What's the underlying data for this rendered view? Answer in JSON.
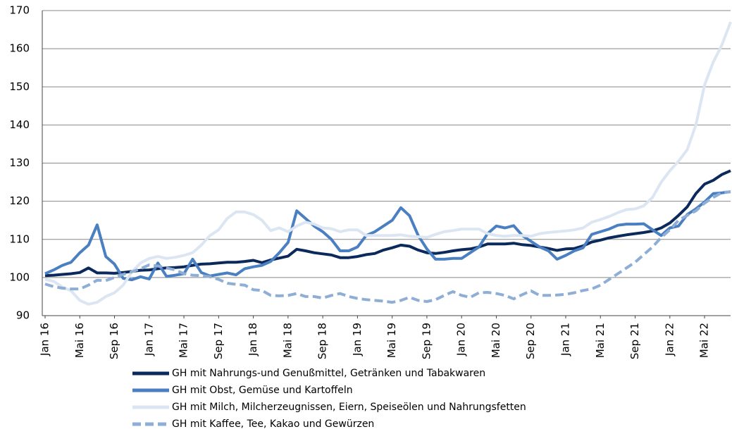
{
  "chart_data": {
    "type": "line",
    "categories": [
      "Jan 16",
      null,
      null,
      null,
      "Mai 16",
      null,
      null,
      null,
      "Sep 16",
      null,
      null,
      null,
      "Jan 17",
      null,
      null,
      null,
      "Mai 17",
      null,
      null,
      null,
      "Sep 17",
      null,
      null,
      null,
      "Jan 18",
      null,
      null,
      null,
      "Mai 18",
      null,
      null,
      null,
      "Sep 18",
      null,
      null,
      null,
      "Jan 19",
      null,
      null,
      null,
      "Mai 19",
      null,
      null,
      null,
      "Sep 19",
      null,
      null,
      null,
      "Jan 20",
      null,
      null,
      null,
      "Mai 20",
      null,
      null,
      null,
      "Sep 20",
      null,
      null,
      null,
      "Jan 21",
      null,
      null,
      null,
      "Mai 21",
      null,
      null,
      null,
      "Sep 21",
      null,
      null,
      null,
      "Jan 22",
      null,
      null,
      null,
      "Mai 22",
      null,
      null,
      null
    ],
    "series": [
      {
        "name": "GH mit Nahrungs-und Genußmittel, Getränken und Tabakwaren",
        "color": "#0b2a5b",
        "values": [
          100.5,
          100.6,
          100.8,
          101,
          101.3,
          102.5,
          101.2,
          101.2,
          101.1,
          101.3,
          101.6,
          101.9,
          102,
          102.3,
          102.5,
          102.6,
          102.8,
          103.2,
          103.5,
          103.6,
          103.8,
          104,
          104,
          104.2,
          104.5,
          103.9,
          104.6,
          105.1,
          105.6,
          107.4,
          107,
          106.5,
          106.2,
          105.9,
          105.2,
          105.2,
          105.5,
          106,
          106.3,
          107.2,
          107.8,
          108.5,
          108.2,
          107.2,
          106.5,
          106.3,
          106.6,
          107,
          107.3,
          107.5,
          108,
          108.8,
          108.8,
          108.8,
          109,
          108.6,
          108.4,
          108,
          107.6,
          107.1,
          107.5,
          107.6,
          108.3,
          109.3,
          109.8,
          110.4,
          110.8,
          111.2,
          111.5,
          111.8,
          112.2,
          113,
          114.3,
          116.3,
          118.5,
          122,
          124.5,
          125.5,
          127,
          128
        ]
      },
      {
        "name": "GH mit Obst, Gemüse und Kartoffeln",
        "color": "#4a7fc1",
        "values": [
          101,
          102,
          103.2,
          104,
          106.5,
          108.5,
          113.8,
          105.5,
          103.5,
          99.8,
          99.4,
          100.2,
          99.6,
          103.8,
          100.3,
          100.6,
          101,
          104.8,
          101.3,
          100.4,
          100.8,
          101.2,
          100.7,
          102.3,
          102.8,
          103.2,
          104.2,
          106.5,
          109.2,
          117.5,
          115.5,
          113.5,
          112,
          110,
          107,
          107,
          108,
          111,
          112,
          113.5,
          115,
          118.3,
          116.2,
          111,
          107.5,
          104.8,
          104.8,
          105,
          105,
          106.5,
          108,
          111.5,
          113.5,
          113,
          113.6,
          111,
          109.5,
          108,
          107,
          104.8,
          105.8,
          107,
          107.8,
          111.3,
          112,
          112.7,
          113.7,
          114,
          114,
          114.1,
          112.5,
          111,
          113,
          113.5,
          116.5,
          118,
          119.8,
          122,
          122.2,
          122.5
        ]
      },
      {
        "name": "GH mit Milch, Milcherzeugnissen, Eiern, Speiseölen und Nahrungsfetten",
        "color": "#dce6f3",
        "values": [
          99.5,
          99,
          97.5,
          96.5,
          94,
          93,
          93.5,
          95,
          96,
          98,
          101.5,
          103.8,
          105,
          105.5,
          105,
          105.3,
          105.8,
          106.5,
          108.5,
          111,
          112.5,
          115.5,
          117.2,
          117.2,
          116.5,
          115,
          112.3,
          113,
          112,
          113.5,
          114.5,
          114,
          113,
          112.8,
          112,
          112.5,
          112.5,
          111,
          111,
          111,
          111,
          111.2,
          110.8,
          110.7,
          110.5,
          111.3,
          112,
          112.3,
          112.7,
          112.7,
          112.7,
          111.5,
          111,
          110.8,
          111,
          111,
          110.8,
          111.5,
          111.8,
          112,
          112.2,
          112.5,
          113,
          114.5,
          115.2,
          116,
          117,
          117.8,
          118,
          118.8,
          121,
          125,
          128,
          130.5,
          133.5,
          140,
          150.5,
          156.5,
          161,
          167
        ]
      },
      {
        "name": "GH mit Kaffee, Tee, Kakao und Gewürzen",
        "color": "#8eaed6",
        "dashed": true,
        "values": [
          98.3,
          97.6,
          97.2,
          97,
          97,
          98,
          99.3,
          99.2,
          100,
          100.8,
          101.5,
          102.3,
          103.3,
          103,
          102.5,
          102,
          101,
          100.6,
          100.5,
          100.2,
          99.5,
          98.5,
          98.2,
          98,
          96.8,
          96.6,
          95.3,
          95.2,
          95.3,
          95.8,
          95,
          95,
          94.6,
          95.3,
          95.8,
          95,
          94.5,
          94.2,
          94,
          93.8,
          93.5,
          94,
          94.8,
          94,
          93.7,
          94.2,
          95.3,
          96.3,
          95.3,
          94.8,
          96,
          96.1,
          95.8,
          95.3,
          94.4,
          95.5,
          96.5,
          95.3,
          95.3,
          95.4,
          95.6,
          96,
          96.6,
          97,
          98,
          99.5,
          101,
          102.5,
          104,
          106,
          108,
          110.5,
          112.5,
          115,
          116.3,
          117.5,
          119.5,
          121,
          122.3,
          122.5
        ]
      }
    ],
    "ylim": [
      90,
      170
    ],
    "yticks": [
      90,
      100,
      110,
      120,
      130,
      140,
      150,
      160,
      170
    ],
    "grid": true
  }
}
